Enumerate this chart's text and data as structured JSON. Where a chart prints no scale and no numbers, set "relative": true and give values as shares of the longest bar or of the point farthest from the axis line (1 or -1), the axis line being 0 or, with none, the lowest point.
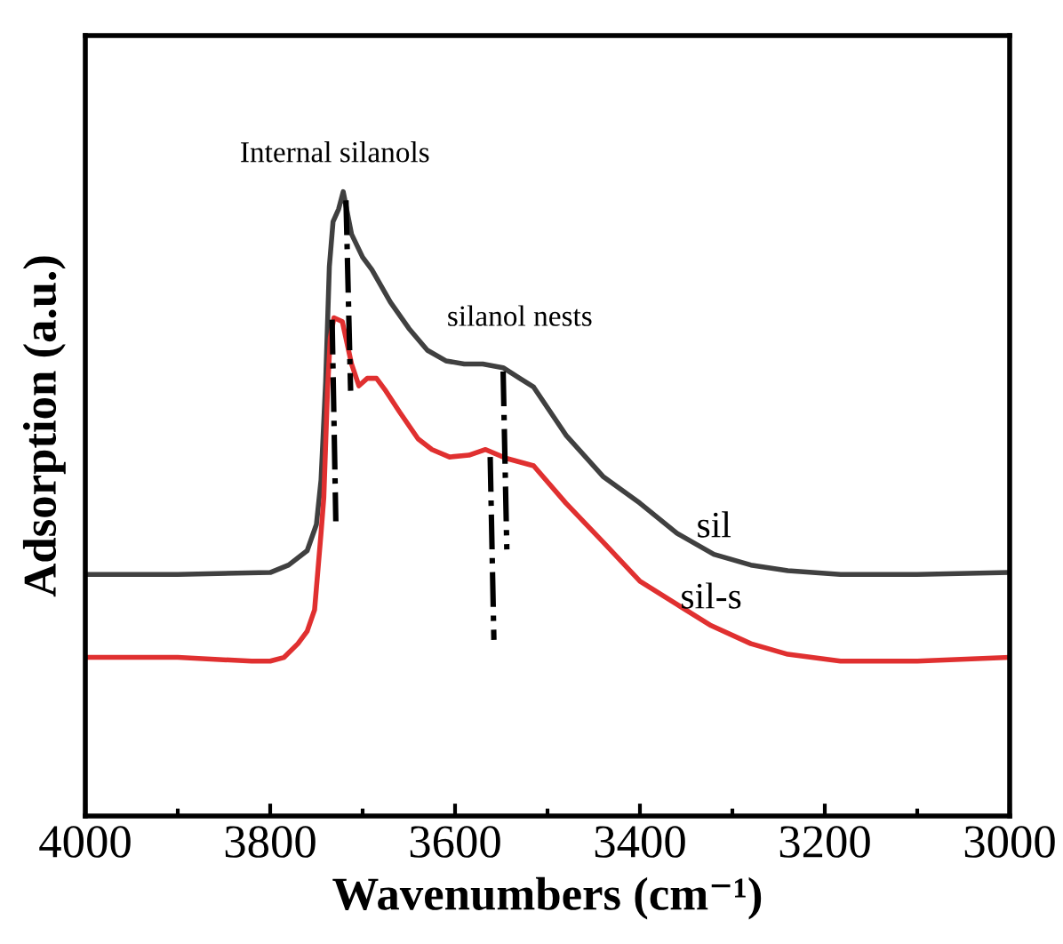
{
  "chart_data": {
    "type": "line",
    "relative": true,
    "xlabel": "Wavenumbers (cm⁻¹)",
    "ylabel": "Adsorption (a.u.)",
    "xlim": [
      4000,
      3000
    ],
    "xticks": [
      4000,
      3800,
      3600,
      3400,
      3200,
      3000
    ],
    "tick_labels": "x",
    "grid": false,
    "legend": false,
    "marker": "none",
    "series": [
      {
        "name": "sil",
        "color": "#404040",
        "line_style": "solid",
        "x": [
          4000,
          3900,
          3800,
          3780,
          3760,
          3750,
          3745,
          3740,
          3736,
          3732,
          3726,
          3721,
          3712,
          3700,
          3690,
          3670,
          3650,
          3630,
          3610,
          3590,
          3570,
          3548,
          3530,
          3515,
          3480,
          3440,
          3400,
          3360,
          3320,
          3280,
          3240,
          3183,
          3100,
          3000
        ],
        "values": [
          0.387,
          0.387,
          0.39,
          0.402,
          0.425,
          0.467,
          0.538,
          0.695,
          0.88,
          0.952,
          0.972,
          1.0,
          0.932,
          0.895,
          0.875,
          0.823,
          0.781,
          0.746,
          0.729,
          0.724,
          0.724,
          0.718,
          0.701,
          0.687,
          0.61,
          0.544,
          0.501,
          0.453,
          0.419,
          0.402,
          0.393,
          0.387,
          0.387,
          0.39
        ]
      },
      {
        "name": "sil-s",
        "color": "#e03030",
        "line_style": "solid",
        "x": [
          4000,
          3900,
          3820,
          3800,
          3785,
          3770,
          3760,
          3752,
          3745,
          3742,
          3738,
          3735,
          3731,
          3722,
          3712,
          3704,
          3695,
          3685,
          3675,
          3660,
          3640,
          3625,
          3606,
          3585,
          3567,
          3545,
          3515,
          3480,
          3440,
          3400,
          3360,
          3323,
          3280,
          3240,
          3183,
          3100,
          3000
        ],
        "values": [
          0.254,
          0.254,
          0.248,
          0.248,
          0.254,
          0.276,
          0.296,
          0.33,
          0.453,
          0.51,
          0.681,
          0.766,
          0.798,
          0.792,
          0.724,
          0.689,
          0.701,
          0.701,
          0.681,
          0.647,
          0.604,
          0.587,
          0.575,
          0.578,
          0.587,
          0.573,
          0.561,
          0.501,
          0.439,
          0.376,
          0.339,
          0.305,
          0.276,
          0.259,
          0.248,
          0.248,
          0.254
        ]
      },
      {
        "color": "#000000",
        "line_style": "dashdot",
        "x": [
          3718,
          3713
        ],
        "values": [
          0.986,
          0.681
        ]
      },
      {
        "color": "#000000",
        "line_style": "dashdot",
        "x": [
          3733,
          3729
        ],
        "values": [
          0.795,
          0.472
        ]
      },
      {
        "color": "#000000",
        "line_style": "dashdot",
        "x": [
          3548,
          3544
        ],
        "values": [
          0.712,
          0.427
        ]
      },
      {
        "color": "#000000",
        "line_style": "dashdot",
        "x": [
          3562,
          3558
        ],
        "values": [
          0.575,
          0.282
        ]
      }
    ],
    "annotations": [
      "Internal silanols",
      "silanol nests"
    ]
  }
}
